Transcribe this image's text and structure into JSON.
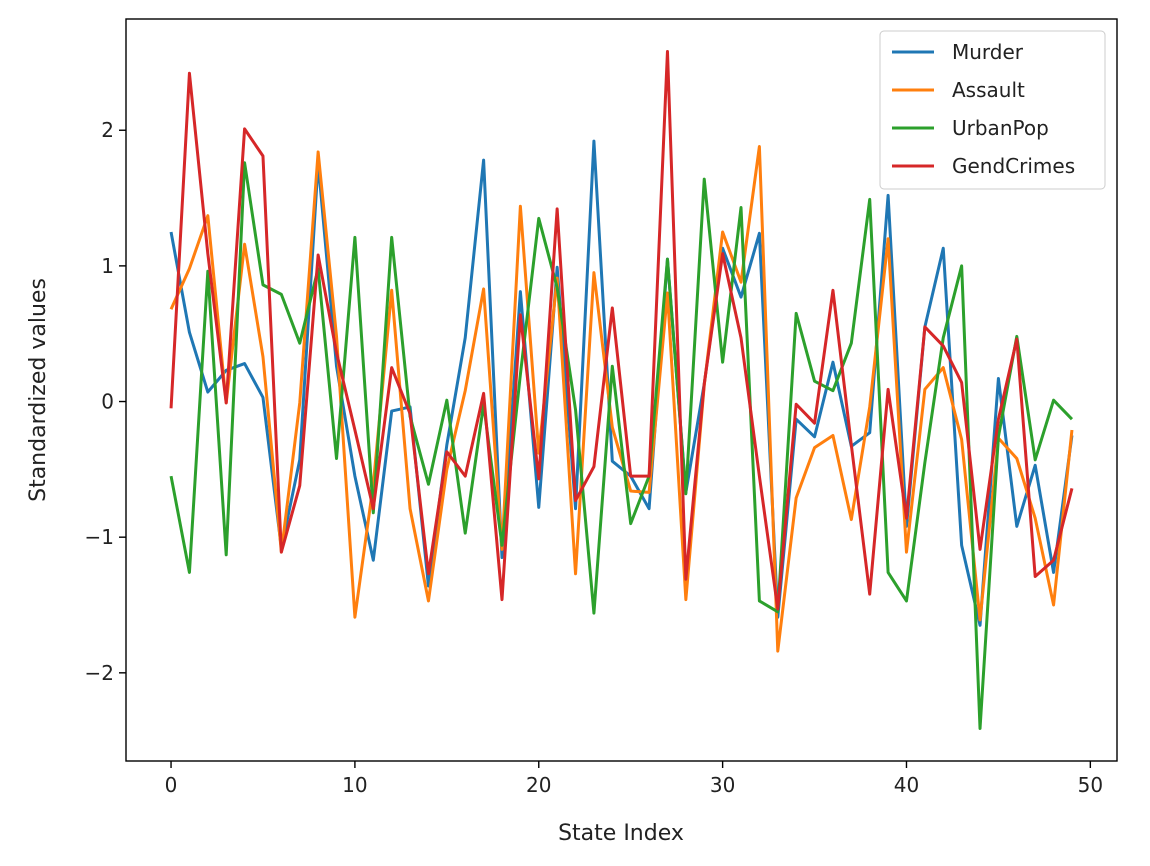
{
  "chart_data": {
    "type": "line",
    "xlabel": "State Index",
    "ylabel": "Standardized values",
    "xlim": [
      -2.45,
      51.45
    ],
    "ylim": [
      -2.65,
      2.82
    ],
    "xticks": [
      0,
      10,
      20,
      30,
      40,
      50
    ],
    "yticks": [
      -2,
      -1,
      0,
      1,
      2
    ],
    "ytick_labels": [
      "−2",
      "−1",
      "0",
      "1",
      "2"
    ],
    "grid": false,
    "legend_position": "top-right",
    "x": [
      0,
      1,
      2,
      3,
      4,
      5,
      6,
      7,
      8,
      9,
      10,
      11,
      12,
      13,
      14,
      15,
      16,
      17,
      18,
      19,
      20,
      21,
      22,
      23,
      24,
      25,
      26,
      27,
      28,
      29,
      30,
      31,
      32,
      33,
      34,
      35,
      36,
      37,
      38,
      39,
      40,
      41,
      42,
      43,
      44,
      45,
      46,
      47,
      48,
      49
    ],
    "series": [
      {
        "name": "Murder",
        "color": "#1f77b4",
        "values": [
          1.25,
          0.51,
          0.07,
          0.23,
          0.28,
          0.03,
          -1.08,
          -0.43,
          1.76,
          0.26,
          -0.55,
          -1.17,
          -0.07,
          -0.04,
          -1.36,
          -0.32,
          0.47,
          1.78,
          -1.15,
          0.81,
          -0.78,
          0.99,
          -0.79,
          1.92,
          -0.44,
          -0.55,
          -0.79,
          1.05,
          -0.67,
          0.13,
          1.13,
          0.77,
          1.24,
          -1.59,
          -0.13,
          -0.26,
          0.29,
          -0.33,
          -0.23,
          1.52,
          -0.92,
          0.55,
          1.13,
          -1.06,
          -1.65,
          0.17,
          -0.92,
          -0.47,
          -1.26,
          -0.25
        ]
      },
      {
        "name": "Assault",
        "color": "#ff7f0e",
        "values": [
          0.68,
          0.98,
          1.37,
          -0.01,
          1.16,
          0.33,
          -1.11,
          -0.01,
          1.84,
          0.48,
          -1.59,
          -0.61,
          0.82,
          -0.79,
          -1.47,
          -0.5,
          0.08,
          0.83,
          -1.09,
          1.44,
          -0.38,
          0.91,
          -1.27,
          0.95,
          -0.19,
          -0.66,
          -0.67,
          0.8,
          -1.46,
          0.12,
          1.25,
          0.88,
          1.88,
          -1.84,
          -0.71,
          -0.34,
          -0.25,
          -0.87,
          -0.04,
          1.2,
          -1.11,
          0.09,
          0.25,
          -0.28,
          -1.61,
          -0.27,
          -0.42,
          -0.86,
          -1.5,
          -0.21
        ]
      },
      {
        "name": "UrbanPop",
        "color": "#2ca02c",
        "values": [
          -0.55,
          -1.26,
          0.96,
          -1.13,
          1.76,
          0.86,
          0.79,
          0.43,
          0.98,
          -0.42,
          1.21,
          -0.82,
          1.21,
          -0.11,
          -0.61,
          0.01,
          -0.97,
          -0.02,
          -1.06,
          0.2,
          1.35,
          0.84,
          -0.06,
          -1.56,
          0.26,
          -0.9,
          -0.55,
          1.05,
          -0.68,
          1.64,
          0.29,
          1.43,
          -1.47,
          -1.55,
          0.65,
          0.15,
          0.08,
          0.43,
          1.49,
          -1.26,
          -1.47,
          -0.45,
          0.47,
          1.0,
          -2.41,
          -0.26,
          0.48,
          -0.43,
          0.01,
          -0.13
        ]
      },
      {
        "name": "GendCrimes",
        "color": "#d62728",
        "values": [
          -0.05,
          2.42,
          1.09,
          -0.01,
          2.01,
          1.81,
          -1.11,
          -0.62,
          1.08,
          0.36,
          -0.21,
          -0.79,
          0.25,
          -0.09,
          -1.27,
          -0.37,
          -0.55,
          0.06,
          -1.46,
          0.64,
          -0.57,
          1.42,
          -0.73,
          -0.48,
          0.69,
          -0.55,
          -0.55,
          2.58,
          -1.31,
          0.13,
          1.09,
          0.47,
          -0.55,
          -1.53,
          -0.02,
          -0.16,
          0.82,
          -0.32,
          -1.42,
          0.09,
          -0.86,
          0.55,
          0.41,
          0.14,
          -1.09,
          -0.13,
          0.46,
          -1.29,
          -1.17,
          -0.64
        ]
      }
    ]
  }
}
